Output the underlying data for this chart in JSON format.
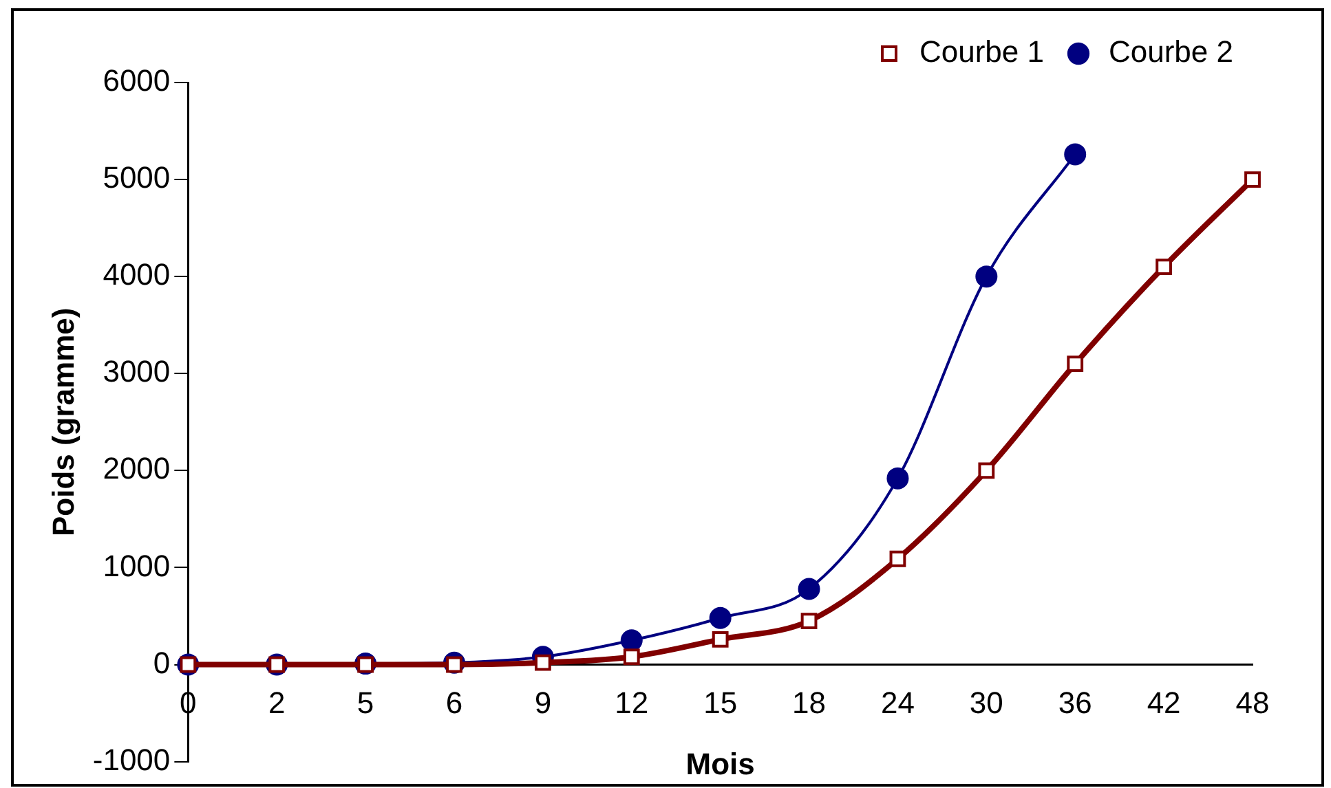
{
  "chart_data": {
    "type": "line",
    "xlabel": "Mois",
    "ylabel": "Poids (gramme)",
    "categories": [
      "0",
      "2",
      "5",
      "6",
      "9",
      "12",
      "15",
      "18",
      "24",
      "30",
      "36",
      "42",
      "48"
    ],
    "series": [
      {
        "name": "Courbe 1",
        "color": "#800000",
        "marker": "square",
        "values": [
          0,
          0,
          0,
          0,
          20,
          80,
          260,
          450,
          1090,
          2000,
          3100,
          4100,
          5000
        ]
      },
      {
        "name": "Courbe 2",
        "color": "#000080",
        "marker": "circle",
        "values": [
          0,
          0,
          10,
          20,
          80,
          250,
          480,
          780,
          1920,
          4000,
          5260,
          null,
          null
        ]
      }
    ],
    "ylim": [
      -1000,
      6000
    ],
    "yticks": [
      -1000,
      0,
      1000,
      2000,
      3000,
      4000,
      5000,
      6000
    ],
    "grid": false,
    "legend": "top right"
  }
}
